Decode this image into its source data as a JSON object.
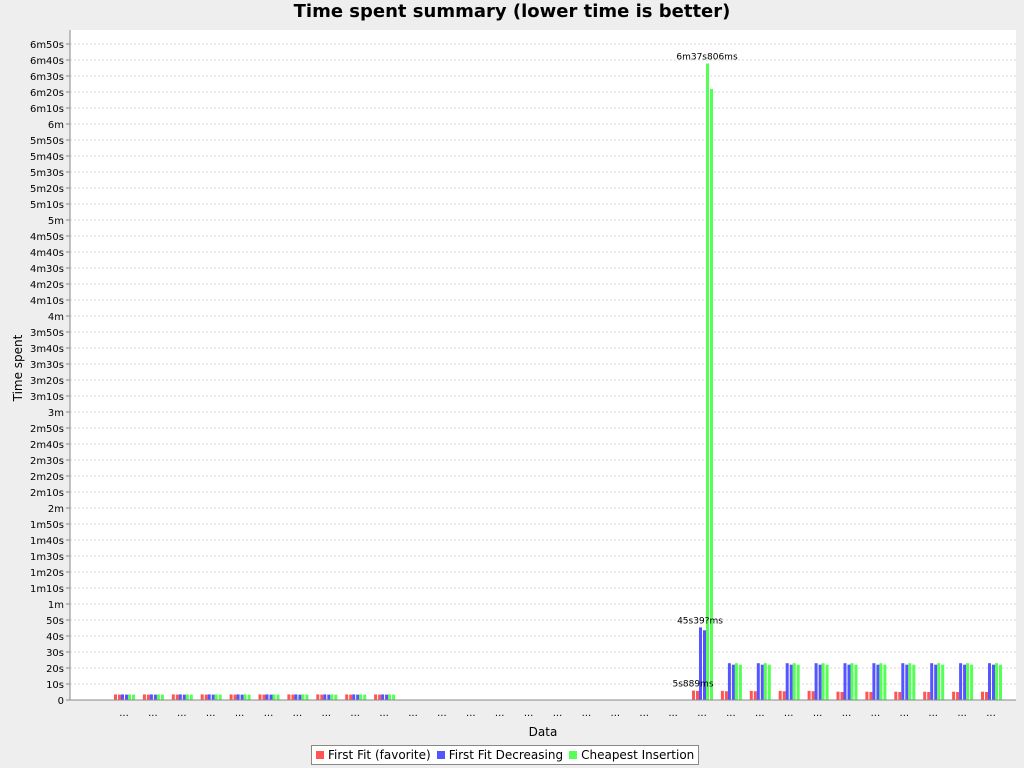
{
  "chart_data": {
    "type": "bar",
    "title": "Time spent summary (lower time is better)",
    "xlabel": "Data",
    "ylabel": "Time spent",
    "ylim_seconds": [
      0,
      415
    ],
    "y_ticks": [
      {
        "v": 0,
        "label": "0"
      },
      {
        "v": 10,
        "label": "10s"
      },
      {
        "v": 20,
        "label": "20s"
      },
      {
        "v": 30,
        "label": "30s"
      },
      {
        "v": 40,
        "label": "40s"
      },
      {
        "v": 50,
        "label": "50s"
      },
      {
        "v": 60,
        "label": "1m"
      },
      {
        "v": 70,
        "label": "1m10s"
      },
      {
        "v": 80,
        "label": "1m20s"
      },
      {
        "v": 90,
        "label": "1m30s"
      },
      {
        "v": 100,
        "label": "1m40s"
      },
      {
        "v": 110,
        "label": "1m50s"
      },
      {
        "v": 120,
        "label": "2m"
      },
      {
        "v": 130,
        "label": "2m10s"
      },
      {
        "v": 140,
        "label": "2m20s"
      },
      {
        "v": 150,
        "label": "2m30s"
      },
      {
        "v": 160,
        "label": "2m40s"
      },
      {
        "v": 170,
        "label": "2m50s"
      },
      {
        "v": 180,
        "label": "3m"
      },
      {
        "v": 190,
        "label": "3m10s"
      },
      {
        "v": 200,
        "label": "3m20s"
      },
      {
        "v": 210,
        "label": "3m30s"
      },
      {
        "v": 220,
        "label": "3m40s"
      },
      {
        "v": 230,
        "label": "3m50s"
      },
      {
        "v": 240,
        "label": "4m"
      },
      {
        "v": 250,
        "label": "4m10s"
      },
      {
        "v": 260,
        "label": "4m20s"
      },
      {
        "v": 270,
        "label": "4m30s"
      },
      {
        "v": 280,
        "label": "4m40s"
      },
      {
        "v": 290,
        "label": "4m50s"
      },
      {
        "v": 300,
        "label": "5m"
      },
      {
        "v": 310,
        "label": "5m10s"
      },
      {
        "v": 320,
        "label": "5m20s"
      },
      {
        "v": 330,
        "label": "5m30s"
      },
      {
        "v": 340,
        "label": "5m40s"
      },
      {
        "v": 350,
        "label": "5m50s"
      },
      {
        "v": 360,
        "label": "6m"
      },
      {
        "v": 370,
        "label": "6m10s"
      },
      {
        "v": 380,
        "label": "6m20s"
      },
      {
        "v": 390,
        "label": "6m30s"
      },
      {
        "v": 400,
        "label": "6m40s"
      },
      {
        "v": 410,
        "label": "6m50s"
      }
    ],
    "categories": [
      "...",
      "...",
      "...",
      "...",
      "...",
      "...",
      "...",
      "...",
      "...",
      "...",
      "...",
      "...",
      "...",
      "...",
      "...",
      "...",
      "...",
      "...",
      "...",
      "...",
      "...",
      "...",
      "...",
      "...",
      "...",
      "...",
      "...",
      "...",
      "...",
      "...",
      "..."
    ],
    "series": [
      {
        "name": "First Fit (favorite)",
        "color": "#ff5555",
        "values": [
          3.5,
          3.5,
          3.5,
          3.5,
          3.5,
          3.5,
          3.5,
          3.5,
          3.5,
          3.5,
          0.01,
          0.01,
          0.01,
          0.01,
          0.01,
          0.01,
          0.01,
          0.01,
          0.01,
          0.01,
          5.889,
          5.7,
          5.7,
          5.7,
          5.7,
          5.2,
          5.2,
          5.2,
          5.2,
          5.2,
          5.2
        ]
      },
      {
        "name": "First Fit Decreasing",
        "color": "#5555ff",
        "values": [
          3.5,
          3.5,
          3.5,
          3.5,
          3.5,
          3.5,
          3.5,
          3.5,
          3.5,
          3.5,
          0.01,
          0.01,
          0.01,
          0.01,
          0.01,
          0.01,
          0.01,
          0.01,
          0.01,
          0.01,
          45.39,
          23,
          23,
          23,
          23,
          23,
          23,
          23,
          23,
          23,
          23
        ]
      },
      {
        "name": "Cheapest Insertion",
        "color": "#55ff55",
        "values": [
          3.5,
          3.5,
          3.5,
          3.5,
          3.5,
          3.5,
          3.5,
          3.5,
          3.5,
          3.5,
          0.01,
          0.01,
          0.01,
          0.01,
          0.01,
          0.01,
          0.01,
          0.01,
          0.01,
          0.01,
          397.806,
          23,
          23,
          23,
          23,
          23,
          23,
          23,
          23,
          23,
          23
        ]
      }
    ],
    "data_labels": [
      {
        "category_index": 20,
        "series_index": 2,
        "text": "6m37s806ms"
      },
      {
        "category_index": 20,
        "series_index": 1,
        "text": "45s39?ms"
      },
      {
        "category_index": 20,
        "series_index": 0,
        "text": "5s889ms"
      }
    ],
    "legend_position": "bottom",
    "grid": true
  }
}
